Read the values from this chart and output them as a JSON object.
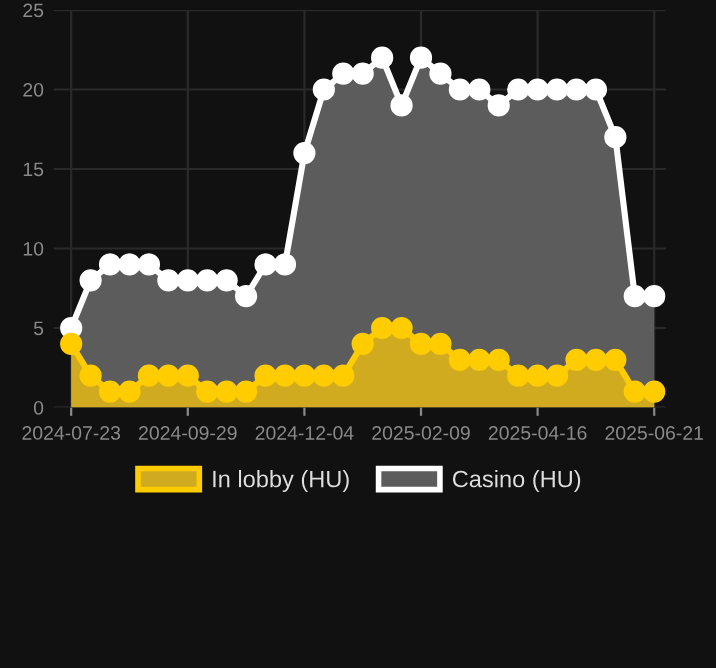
{
  "chart_data": {
    "type": "area",
    "categories": [
      "2024-07-23",
      null,
      null,
      null,
      null,
      null,
      "2024-09-29",
      null,
      null,
      null,
      null,
      null,
      "2024-12-04",
      null,
      null,
      null,
      null,
      null,
      "2025-02-09",
      null,
      null,
      null,
      null,
      null,
      "2025-04-16",
      null,
      null,
      null,
      null,
      null,
      "2025-06-21"
    ],
    "series": [
      {
        "name": "In lobby (HU)",
        "color": "#ffcc00",
        "values": [
          4,
          2,
          1,
          1,
          2,
          2,
          2,
          1,
          1,
          1,
          2,
          2,
          2,
          2,
          2,
          4,
          5,
          5,
          4,
          4,
          3,
          3,
          3,
          2,
          2,
          2,
          3,
          3,
          3,
          1,
          1
        ]
      },
      {
        "name": "Casino (HU)",
        "color": "#ffffff",
        "values": [
          5,
          8,
          9,
          9,
          9,
          8,
          8,
          8,
          8,
          7,
          9,
          9,
          16,
          20,
          21,
          21,
          22,
          19,
          22,
          21,
          20,
          20,
          19,
          20,
          20,
          20,
          20,
          20,
          17,
          7,
          7
        ]
      }
    ],
    "ylim": [
      0,
      25
    ],
    "yticks": [
      0,
      5,
      10,
      15,
      20,
      25
    ],
    "grid": true,
    "legend": "bottom",
    "marker": "circle"
  }
}
